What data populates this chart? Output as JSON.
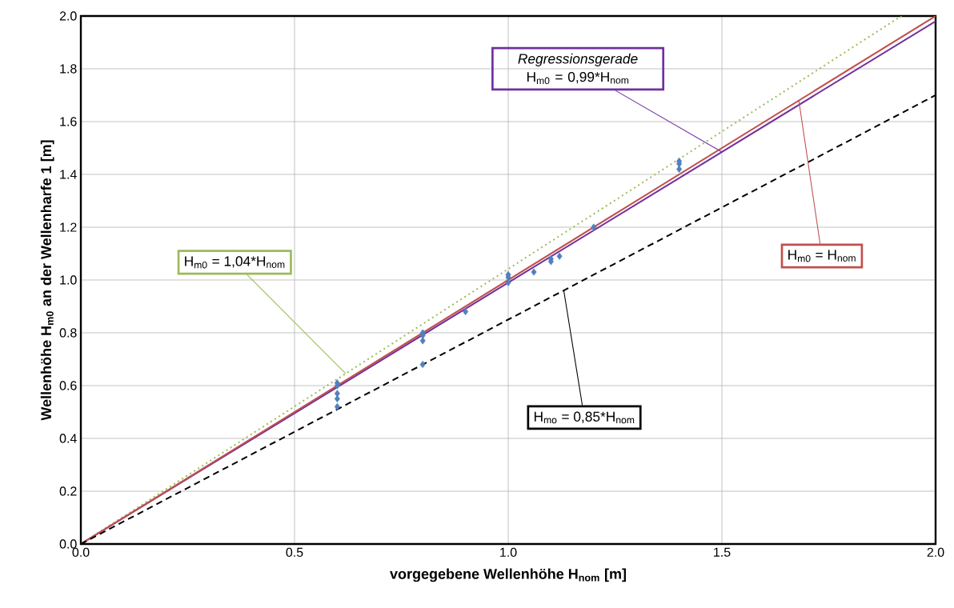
{
  "chart_data": {
    "type": "scatter",
    "xlabel": "vorgegebene Wellenhöhe H$_{nom}$ [m]",
    "ylabel": "Wellenhöhe H$_{m0}$ an der Wellenharfe 1 [m]",
    "xlim": [
      0,
      2.0
    ],
    "ylim": [
      0,
      2.0
    ],
    "xticks": [
      {
        "value": 0,
        "label": "0.0"
      },
      {
        "value": 0.5,
        "label": "0.5"
      },
      {
        "value": 1.0,
        "label": "1.0"
      },
      {
        "value": 1.5,
        "label": "1.5"
      },
      {
        "value": 2.0,
        "label": "2.0"
      }
    ],
    "yticks": [
      {
        "value": 0,
        "label": "0.0"
      },
      {
        "value": 0.2,
        "label": "0.2"
      },
      {
        "value": 0.4,
        "label": "0.4"
      },
      {
        "value": 0.6,
        "label": "0.6"
      },
      {
        "value": 0.8,
        "label": "0.8"
      },
      {
        "value": 1.0,
        "label": "1.0"
      },
      {
        "value": 1.2,
        "label": "1.2"
      },
      {
        "value": 1.4,
        "label": "1.4"
      },
      {
        "value": 1.6,
        "label": "1.6"
      },
      {
        "value": 1.8,
        "label": "1.8"
      },
      {
        "value": 2.0,
        "label": "2.0"
      }
    ],
    "grid": true,
    "series": [
      {
        "marker": "diamond",
        "color": "#4f81bd",
        "x": [
          0.6,
          0.6,
          0.6,
          0.6,
          0.6,
          0.8,
          0.8,
          0.8,
          0.8,
          0.9,
          1.0,
          1.0,
          1.0,
          1.06,
          1.1,
          1.1,
          1.12,
          1.2,
          1.4,
          1.4,
          1.4
        ],
        "values": [
          0.61,
          0.6,
          0.57,
          0.55,
          0.52,
          0.8,
          0.79,
          0.77,
          0.68,
          0.88,
          1.02,
          1.01,
          0.99,
          1.03,
          1.08,
          1.07,
          1.09,
          1.2,
          1.45,
          1.44,
          1.42
        ]
      },
      {
        "type": "line",
        "color": "#9bbb59",
        "line_style": "dotted",
        "x": [
          0,
          1.92
        ],
        "values": [
          0,
          2.0
        ]
      },
      {
        "type": "line",
        "color": "#7030a0",
        "line_style": "solid",
        "x": [
          0,
          2.0
        ],
        "values": [
          0,
          1.98
        ]
      },
      {
        "type": "line",
        "color": "#c0504d",
        "line_style": "solid",
        "x": [
          0,
          2.0
        ],
        "values": [
          0,
          2.0
        ]
      },
      {
        "type": "line",
        "color": "#000000",
        "line_style": "dashed",
        "x": [
          0,
          2.0
        ],
        "values": [
          0,
          1.7
        ]
      }
    ],
    "annotations": [
      {
        "text": "H$_{m0}$ = 1,04*H$_{nom}$",
        "x": 0.62,
        "y": 0.645
      },
      {
        "text": "*Regressionsgerade* H$_{m0}$ = 0,99*H$_{nom}$",
        "x": 1.5,
        "y": 1.485
      },
      {
        "text": "H$_{m0}$ = H$_{nom}$",
        "x": 1.68,
        "y": 1.68
      },
      {
        "text": "H$_{mo}$ = 0,85*H$_{nom}$",
        "x": 1.13,
        "y": 0.96
      }
    ]
  }
}
